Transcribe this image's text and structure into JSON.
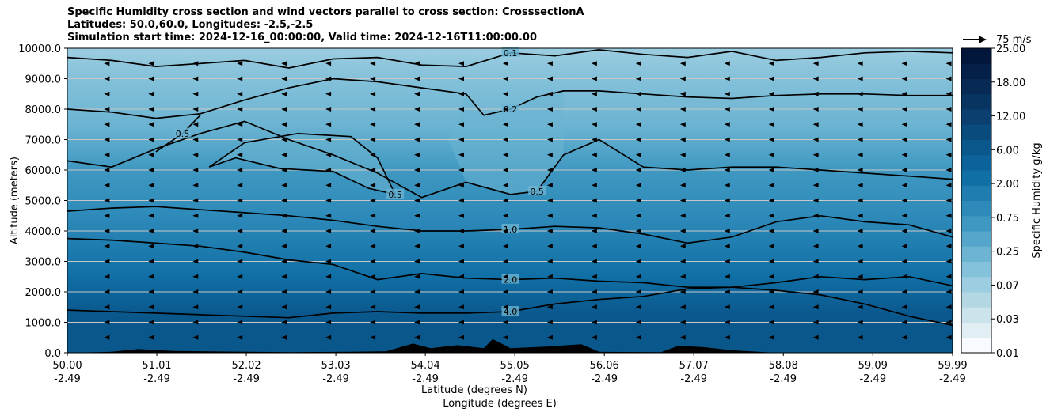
{
  "title_lines": [
    "Specific Humidity cross section and wind vectors parallel to cross section: CrosssectionA",
    "Latitudes: 50.0,60.0, Longitudes: -2.5,-2.5",
    "Simulation start time: 2024-12-16_00:00:00, Valid time: 2024-12-16T11:00:00.00"
  ],
  "quiver_key": "75 m/s",
  "colors": {
    "levels": [
      "#f7fbff",
      "#e1eef4",
      "#cbe3ea",
      "#b4d8e3",
      "#9ccde0",
      "#84c1da",
      "#6cb4d2",
      "#55a6ca",
      "#3f98c1",
      "#2e8ab9",
      "#1f7daf",
      "#106fa5",
      "#0b6399",
      "#0a578c",
      "#0a4b7e",
      "#0a3f70",
      "#083461",
      "#062a54",
      "#042048",
      "#02163c"
    ],
    "contour": "#000000",
    "terrain": "#000000",
    "grid": "#c8c8c8"
  },
  "chart_data": {
    "type": "contour",
    "xlabel": "Latitude (degrees N)",
    "xlabel2": "Longitude (degrees E)",
    "ylabel": "Altitude (meters)",
    "ylim": [
      0,
      10000
    ],
    "xlim": [
      50.0,
      59.99
    ],
    "yticks": [
      "0.0",
      "1000.0",
      "2000.0",
      "3000.0",
      "4000.0",
      "5000.0",
      "6000.0",
      "7000.0",
      "8000.0",
      "9000.0",
      "10000.0"
    ],
    "xticks": [
      {
        "lat": "50.00",
        "lon": "-2.49"
      },
      {
        "lat": "51.01",
        "lon": "-2.49"
      },
      {
        "lat": "52.02",
        "lon": "-2.49"
      },
      {
        "lat": "53.03",
        "lon": "-2.49"
      },
      {
        "lat": "54.04",
        "lon": "-2.49"
      },
      {
        "lat": "55.05",
        "lon": "-2.49"
      },
      {
        "lat": "56.06",
        "lon": "-2.49"
      },
      {
        "lat": "57.07",
        "lon": "-2.49"
      },
      {
        "lat": "58.08",
        "lon": "-2.49"
      },
      {
        "lat": "59.09",
        "lon": "-2.49"
      },
      {
        "lat": "59.99",
        "lon": "-2.49"
      }
    ],
    "colorbar": {
      "label": "Specific Humidity g/kg",
      "ticks": [
        "0.01",
        "0.03",
        "0.07",
        "0.25",
        "0.75",
        "2.00",
        "6.00",
        "12.00",
        "18.00",
        "25.00"
      ]
    },
    "contours": [
      {
        "label": "0.1",
        "lat": [
          50.0,
          50.5,
          51.0,
          51.5,
          52.0,
          52.5,
          53.0,
          53.5,
          54.0,
          54.5,
          55.0,
          55.5,
          56.0,
          56.5,
          57.0,
          57.5,
          58.0,
          58.5,
          59.0,
          59.5,
          59.99
        ],
        "alt": [
          9700,
          9600,
          9400,
          9500,
          9600,
          9350,
          9650,
          9700,
          9450,
          9400,
          9850,
          9750,
          9950,
          9800,
          9700,
          9900,
          9600,
          9700,
          9850,
          9900,
          9850
        ]
      },
      {
        "label": "0.2",
        "lat": [
          50.0,
          50.5,
          51.0,
          51.5,
          52.0,
          52.5,
          53.0,
          53.5,
          54.0,
          54.5,
          54.7,
          55.0,
          55.3,
          55.6,
          56.0,
          56.5,
          57.0,
          57.5,
          58.0,
          58.5,
          59.0,
          59.5,
          59.99
        ],
        "alt": [
          8000,
          7900,
          7700,
          7850,
          8300,
          8700,
          9000,
          8900,
          8700,
          8500,
          7800,
          8000,
          8400,
          8600,
          8600,
          8500,
          8400,
          8350,
          8450,
          8500,
          8500,
          8450,
          8450
        ]
      },
      {
        "label": "0.5",
        "lat": [
          50.0,
          50.5,
          51.0,
          51.5,
          52.0,
          52.5,
          53.0,
          53.5,
          54.0,
          54.5,
          55.0,
          55.3,
          55.6,
          56.0,
          56.5,
          57.0,
          57.5,
          58.0,
          58.5,
          59.0,
          59.5,
          59.99
        ],
        "alt": [
          6300,
          6100,
          6700,
          7200,
          7600,
          7000,
          6500,
          5900,
          5100,
          5600,
          5200,
          5300,
          6500,
          7000,
          6100,
          6000,
          6100,
          6100,
          6000,
          5900,
          5800,
          5700
        ]
      },
      {
        "label": "1.0",
        "lat": [
          50.0,
          50.5,
          51.0,
          51.5,
          52.0,
          52.5,
          53.0,
          53.5,
          54.0,
          54.5,
          55.0,
          55.5,
          56.0,
          56.5,
          57.0,
          57.5,
          58.0,
          58.5,
          59.0,
          59.5,
          59.99
        ],
        "alt": [
          4650,
          4750,
          4800,
          4700,
          4600,
          4500,
          4350,
          4150,
          4000,
          4000,
          4050,
          4150,
          4100,
          3900,
          3600,
          3800,
          4300,
          4500,
          4300,
          4200,
          3800
        ]
      },
      {
        "label": "2.0",
        "lat": [
          50.0,
          50.5,
          51.0,
          51.5,
          52.0,
          52.5,
          53.0,
          53.5,
          54.0,
          54.5,
          55.0,
          55.5,
          56.0,
          56.5,
          57.0,
          57.5,
          58.0,
          58.5,
          59.0,
          59.5,
          59.99
        ],
        "alt": [
          3750,
          3700,
          3600,
          3500,
          3300,
          3050,
          2900,
          2400,
          2600,
          2450,
          2400,
          2450,
          2350,
          2300,
          2150,
          2150,
          2300,
          2500,
          2400,
          2500,
          2200
        ]
      },
      {
        "label": "4.0",
        "lat": [
          50.0,
          50.5,
          51.0,
          51.5,
          52.0,
          52.5,
          53.0,
          53.5,
          54.0,
          54.5,
          55.0,
          55.5,
          56.0,
          56.5,
          57.0,
          57.5,
          58.0,
          58.5,
          59.0,
          59.5,
          59.99
        ],
        "alt": [
          1400,
          1350,
          1300,
          1250,
          1200,
          1150,
          1300,
          1350,
          1300,
          1300,
          1350,
          1600,
          1750,
          1850,
          2100,
          2150,
          2050,
          1900,
          1600,
          1200,
          900
        ]
      },
      {
        "label": "0.5",
        "lat": [
          51.6,
          52.0,
          52.6,
          53.2,
          53.5,
          53.7,
          53.4,
          53.0,
          52.4,
          51.9,
          51.6
        ],
        "alt": [
          6100,
          6900,
          7200,
          7100,
          6400,
          5200,
          5400,
          5950,
          6050,
          6400,
          6100
        ]
      },
      {
        "label": "0.5",
        "lat": [
          51.0,
          51.3,
          51.5
        ],
        "alt": [
          6600,
          7200,
          7800
        ]
      }
    ]
  }
}
